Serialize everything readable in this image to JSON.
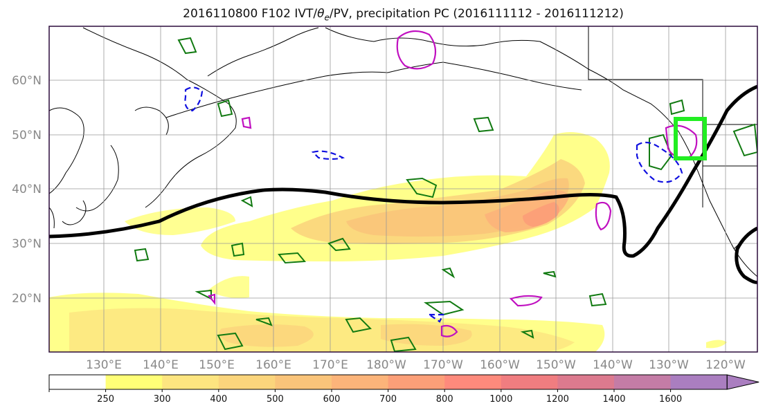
{
  "title": {
    "prefix": "2016110800 F102 IVT/",
    "theta": "θ",
    "sub": "e",
    "suffix": "/PV, precipitation PC (2016111112 - 2016111212)"
  },
  "map": {
    "lat_labels": [
      "60°N",
      "50°N",
      "40°N",
      "30°N",
      "20°N"
    ],
    "lon_labels": [
      "130°E",
      "140°E",
      "150°E",
      "160°E",
      "170°E",
      "180°W",
      "170°W",
      "160°W",
      "150°W",
      "140°W",
      "130°W",
      "120°W"
    ]
  },
  "colorbar": {
    "ticks": [
      "250",
      "300",
      "400",
      "500",
      "600",
      "700",
      "800",
      "1000",
      "1200",
      "1400",
      "1600"
    ],
    "colors": [
      "#ffffff",
      "#ffff77",
      "#fde580",
      "#fbd57c",
      "#fac47a",
      "#fcb47a",
      "#fc9f78",
      "#fe8a7c",
      "#f07d80",
      "#dc7a8e",
      "#c47ca6",
      "#aa7ec0"
    ]
  }
}
